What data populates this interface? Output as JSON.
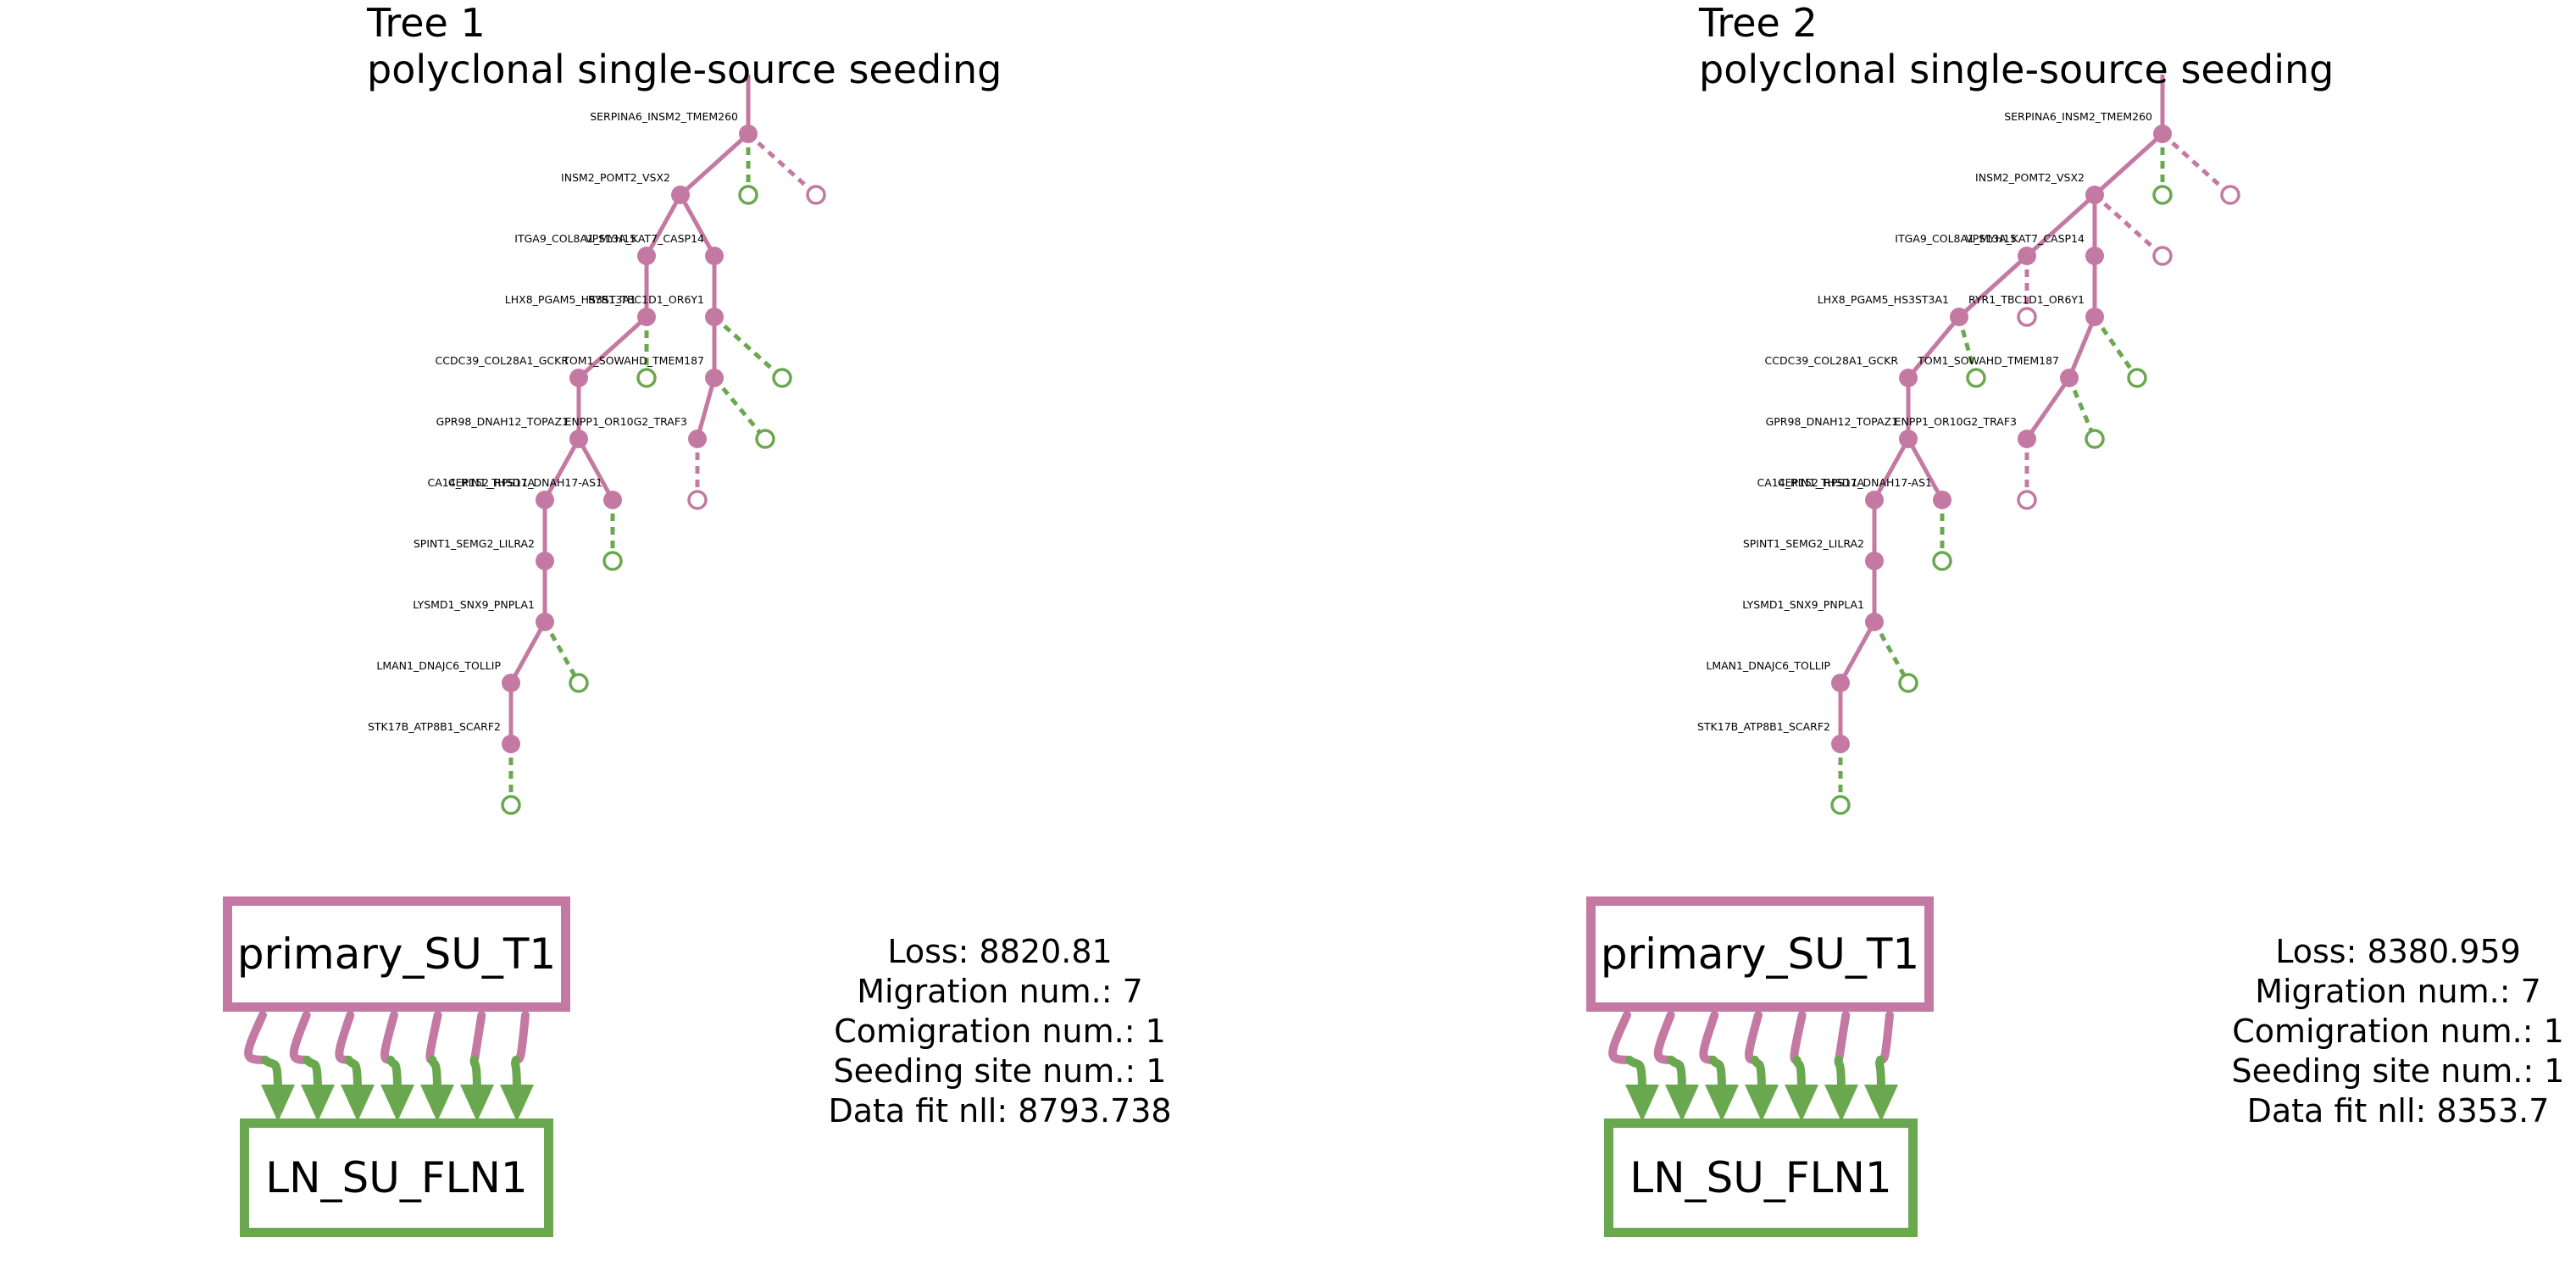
{
  "colors": {
    "primary": "#c479a3",
    "metastasis": "#6aa84f"
  },
  "panels": [
    {
      "title": "Tree 1",
      "subtitle": "polyclonal single-source seeding",
      "source_site": "primary_SU_T1",
      "target_site": "LN_SU_FLN1",
      "migration_edges": 7,
      "stats": {
        "loss": "Loss: 8820.81",
        "migration": "Migration num.: 7",
        "comigration": "Comigration num.: 1",
        "seeding": "Seeding site num.: 1",
        "datafit": "Data fit nll: 8793.738"
      },
      "tree": {
        "nodes": [
          {
            "id": "n1",
            "label": "SERPINA6_INSM2_TMEM260",
            "parent": "root",
            "type": "internal"
          },
          {
            "id": "n2",
            "label": "INSM2_POMT2_VSX2",
            "parent": "n1",
            "type": "internal"
          },
          {
            "id": "l1",
            "label": "",
            "parent": "n1",
            "type": "leaf-met"
          },
          {
            "id": "l2",
            "label": "",
            "parent": "n1",
            "type": "leaf-prim"
          },
          {
            "id": "n3",
            "label": "ITGA9_COL8A1_MYH15",
            "parent": "n2",
            "type": "internal"
          },
          {
            "id": "n4",
            "label": "VPS13A_KAT7_CASP14",
            "parent": "n2",
            "type": "internal"
          },
          {
            "id": "n5",
            "label": "LHX8_PGAM5_HS3ST3A1",
            "parent": "n3",
            "type": "internal"
          },
          {
            "id": "n6",
            "label": "RYR1_TBC1D1_OR6Y1",
            "parent": "n4",
            "type": "internal"
          },
          {
            "id": "n7",
            "label": "CCDC39_COL28A1_GCKR",
            "parent": "n5",
            "type": "internal"
          },
          {
            "id": "l3",
            "label": "",
            "parent": "n5",
            "type": "leaf-met"
          },
          {
            "id": "n8",
            "label": "TOM1_SOWAHD_TMEM187",
            "parent": "n6",
            "type": "internal"
          },
          {
            "id": "l4",
            "label": "",
            "parent": "n6",
            "type": "leaf-met"
          },
          {
            "id": "n9",
            "label": "GPR98_DNAH12_TOPAZ1",
            "parent": "n7",
            "type": "internal"
          },
          {
            "id": "n10",
            "label": "ENPP1_OR10G2_TRAF3",
            "parent": "n8",
            "type": "internal"
          },
          {
            "id": "l5",
            "label": "",
            "parent": "n8",
            "type": "leaf-met"
          },
          {
            "id": "l6",
            "label": "",
            "parent": "n10",
            "type": "leaf-prim"
          },
          {
            "id": "n11",
            "label": "CA14_RIN1_THSD7A",
            "parent": "n9",
            "type": "internal"
          },
          {
            "id": "n12",
            "label": "CEP152_RPS11_DNAH17-AS1",
            "parent": "n9",
            "type": "internal"
          },
          {
            "id": "l7",
            "label": "",
            "parent": "n12",
            "type": "leaf-met"
          },
          {
            "id": "n13",
            "label": "SPINT1_SEMG2_LILRA2",
            "parent": "n11",
            "type": "internal"
          },
          {
            "id": "n14",
            "label": "LYSMD1_SNX9_PNPLA1",
            "parent": "n13",
            "type": "internal"
          },
          {
            "id": "n15",
            "label": "LMAN1_DNAJC6_TOLLIP",
            "parent": "n14",
            "type": "internal"
          },
          {
            "id": "l8",
            "label": "",
            "parent": "n14",
            "type": "leaf-met"
          },
          {
            "id": "n16",
            "label": "STK17B_ATP8B1_SCARF2",
            "parent": "n15",
            "type": "internal"
          },
          {
            "id": "l9",
            "label": "",
            "parent": "n16",
            "type": "leaf-met"
          }
        ]
      }
    },
    {
      "title": "Tree 2",
      "subtitle": "polyclonal single-source seeding",
      "source_site": "primary_SU_T1",
      "target_site": "LN_SU_FLN1",
      "migration_edges": 7,
      "stats": {
        "loss": "Loss: 8380.959",
        "migration": "Migration num.: 7",
        "comigration": "Comigration num.: 1",
        "seeding": "Seeding site num.: 1",
        "datafit": "Data fit nll: 8353.7"
      },
      "tree": {
        "nodes": [
          {
            "id": "n1",
            "label": "SERPINA6_INSM2_TMEM260",
            "parent": "root",
            "type": "internal"
          },
          {
            "id": "n2",
            "label": "INSM2_POMT2_VSX2",
            "parent": "n1",
            "type": "internal"
          },
          {
            "id": "l1",
            "label": "",
            "parent": "n1",
            "type": "leaf-met"
          },
          {
            "id": "l2",
            "label": "",
            "parent": "n1",
            "type": "leaf-prim"
          },
          {
            "id": "n3",
            "label": "ITGA9_COL8A1_MYH15",
            "parent": "n2",
            "type": "internal"
          },
          {
            "id": "n4",
            "label": "VPS13A_KAT7_CASP14",
            "parent": "n2",
            "type": "internal"
          },
          {
            "id": "l3",
            "label": "",
            "parent": "n2",
            "type": "leaf-prim"
          },
          {
            "id": "n5",
            "label": "LHX8_PGAM5_HS3ST3A1",
            "parent": "n3",
            "type": "internal"
          },
          {
            "id": "l4",
            "label": "",
            "parent": "n3",
            "type": "leaf-prim"
          },
          {
            "id": "n6",
            "label": "RYR1_TBC1D1_OR6Y1",
            "parent": "n4",
            "type": "internal"
          },
          {
            "id": "n7",
            "label": "CCDC39_COL28A1_GCKR",
            "parent": "n5",
            "type": "internal"
          },
          {
            "id": "l5",
            "label": "",
            "parent": "n5",
            "type": "leaf-met"
          },
          {
            "id": "n8",
            "label": "TOM1_SOWAHD_TMEM187",
            "parent": "n6",
            "type": "internal"
          },
          {
            "id": "l6",
            "label": "",
            "parent": "n6",
            "type": "leaf-met"
          },
          {
            "id": "n9",
            "label": "GPR98_DNAH12_TOPAZ1",
            "parent": "n7",
            "type": "internal"
          },
          {
            "id": "n10",
            "label": "ENPP1_OR10G2_TRAF3",
            "parent": "n8",
            "type": "internal"
          },
          {
            "id": "l7",
            "label": "",
            "parent": "n8",
            "type": "leaf-met"
          },
          {
            "id": "l8",
            "label": "",
            "parent": "n10",
            "type": "leaf-prim"
          },
          {
            "id": "n11",
            "label": "CA14_RIN1_THSD7A",
            "parent": "n9",
            "type": "internal"
          },
          {
            "id": "n12",
            "label": "CEP152_RPS11_DNAH17-AS1",
            "parent": "n9",
            "type": "internal"
          },
          {
            "id": "l9",
            "label": "",
            "parent": "n12",
            "type": "leaf-met"
          },
          {
            "id": "n13",
            "label": "SPINT1_SEMG2_LILRA2",
            "parent": "n11",
            "type": "internal"
          },
          {
            "id": "n14",
            "label": "LYSMD1_SNX9_PNPLA1",
            "parent": "n13",
            "type": "internal"
          },
          {
            "id": "n15",
            "label": "LMAN1_DNAJC6_TOLLIP",
            "parent": "n14",
            "type": "internal"
          },
          {
            "id": "l10",
            "label": "",
            "parent": "n14",
            "type": "leaf-met"
          },
          {
            "id": "n16",
            "label": "STK17B_ATP8B1_SCARF2",
            "parent": "n15",
            "type": "internal"
          },
          {
            "id": "l11",
            "label": "",
            "parent": "n16",
            "type": "leaf-met"
          }
        ]
      }
    }
  ]
}
